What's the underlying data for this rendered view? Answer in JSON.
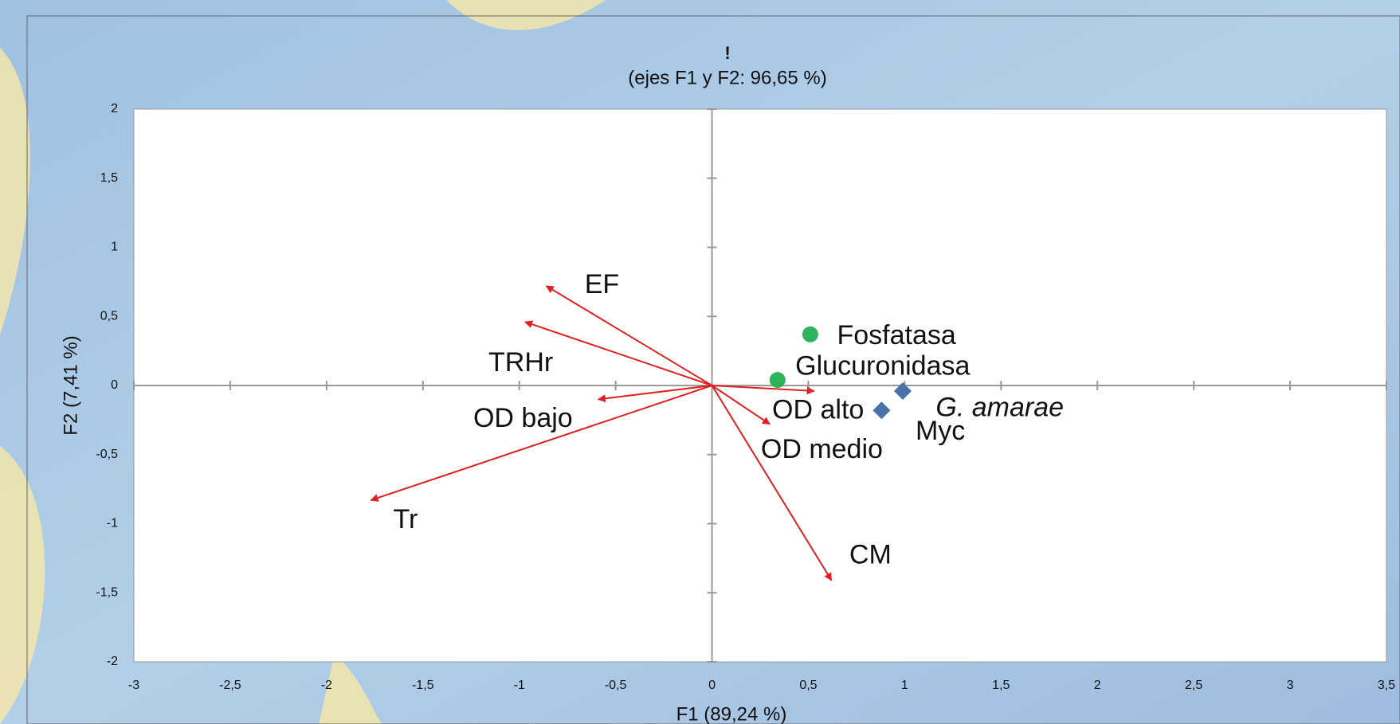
{
  "chart_data": {
    "type": "biplot",
    "title": "!",
    "subtitle": "(ejes F1 y F2: 96,65 %)",
    "x_label": "F1 (89,24 %)",
    "y_label": "F2 (7,41 %)",
    "xlim": [
      -3,
      3.5
    ],
    "ylim": [
      -2,
      2
    ],
    "xticks": [
      -3,
      {
        "value": -2.5,
        "label": "-2,5"
      },
      -2,
      {
        "value": -1.5,
        "label": "-1,5"
      },
      -1,
      {
        "value": -0.5,
        "label": "-0,5"
      },
      0,
      {
        "value": 0.5,
        "label": "0,5"
      },
      1,
      {
        "value": 1.5,
        "label": "1,5"
      },
      2,
      {
        "value": 2.5,
        "label": "2,5"
      },
      3,
      {
        "value": 3.5,
        "label": "3,5"
      }
    ],
    "yticks": [
      -2,
      {
        "value": -1.5,
        "label": "-1,5"
      },
      -1,
      {
        "value": -0.5,
        "label": "-0,5"
      },
      0,
      {
        "value": 0.5,
        "label": "0,5"
      },
      1,
      {
        "value": 1.5,
        "label": "1,5"
      },
      2
    ],
    "vectors": {
      "color": "#e02020",
      "names": [
        "EF",
        "TRHr",
        "OD bajo",
        "Tr",
        "OD alto",
        "OD medio",
        "CM"
      ],
      "x": [
        -0.86,
        -0.97,
        -0.59,
        -1.77,
        0.53,
        0.3,
        0.62
      ],
      "y": [
        0.72,
        0.46,
        -0.1,
        -0.83,
        -0.04,
        -0.28,
        -1.41
      ]
    },
    "points": [
      {
        "color": "#2db35c",
        "marker": "circle",
        "labels": [
          "Fosfatasa",
          "Glucuronidasa"
        ],
        "x": [
          0.51,
          0.34
        ],
        "y": [
          0.37,
          0.04
        ]
      },
      {
        "color": "#4a72a8",
        "marker": "diamond",
        "labels": [
          "G. amarae",
          "Myc"
        ],
        "x": [
          0.99,
          0.88
        ],
        "y": [
          -0.04,
          -0.18
        ]
      }
    ]
  }
}
